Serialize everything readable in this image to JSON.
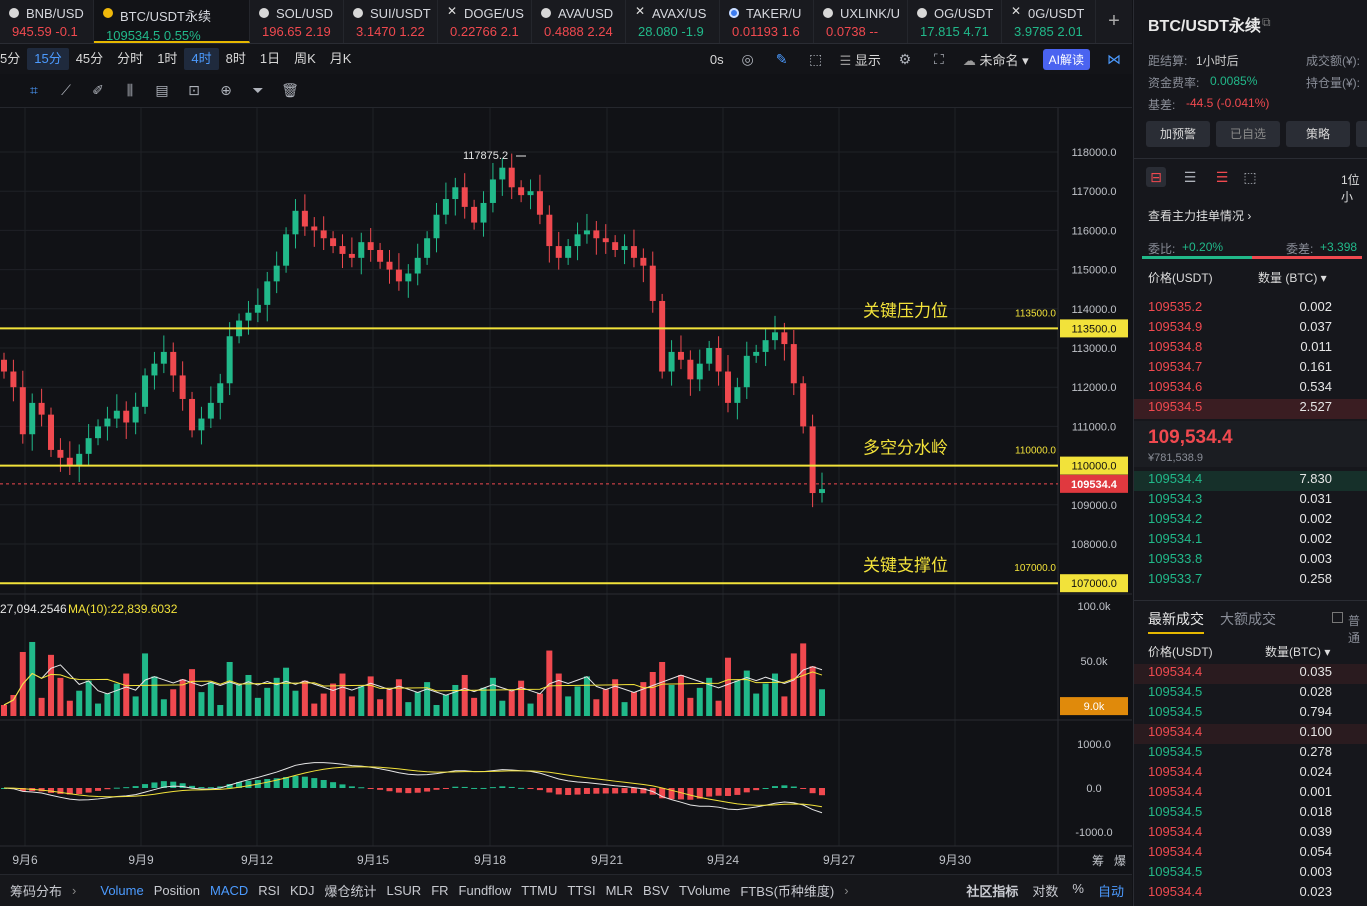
{
  "tabs": [
    {
      "symbol": "BNB/USD",
      "price": "945.59",
      "change": "-0.1",
      "dir": "red",
      "icon": "circle"
    },
    {
      "symbol": "BTC/USDT永续",
      "price": "109534.5",
      "change": "0.55%",
      "dir": "green",
      "icon": "bnb"
    },
    {
      "symbol": "SOL/USD",
      "price": "196.65",
      "change": "2.19",
      "dir": "red",
      "icon": "circle"
    },
    {
      "symbol": "SUI/USDT",
      "price": "3.1470",
      "change": "1.22",
      "dir": "red",
      "icon": "circle"
    },
    {
      "symbol": "DOGE/US",
      "price": "0.22766",
      "change": "2.1",
      "dir": "red",
      "icon": "x"
    },
    {
      "symbol": "AVA/USD",
      "price": "0.4888",
      "change": "2.24",
      "dir": "red",
      "icon": "circle"
    },
    {
      "symbol": "AVAX/US",
      "price": "28.080",
      "change": "-1.9",
      "dir": "green",
      "icon": "x"
    },
    {
      "symbol": "TAKER/U",
      "price": "0.01193",
      "change": "1.6",
      "dir": "red",
      "icon": "blue"
    },
    {
      "symbol": "UXLINK/U",
      "price": "0.0738",
      "change": "--",
      "dir": "red",
      "icon": "circle"
    },
    {
      "symbol": "OG/USDT",
      "price": "17.815",
      "change": "4.71",
      "dir": "green",
      "icon": "circle"
    },
    {
      "symbol": "0G/USDT",
      "price": "3.9785",
      "change": "2.01",
      "dir": "green",
      "icon": "x"
    }
  ],
  "plus_label": "+",
  "timeframes": [
    "5分",
    "15分",
    "45分",
    "分时",
    "1时",
    "4时",
    "8时",
    "1日",
    "周K",
    "月K"
  ],
  "toolbar_right": {
    "countdown": "0s",
    "display": "显示",
    "layout_name": "未命名",
    "ai_label": "AI解读"
  },
  "chart_data": {
    "type": "candlestick",
    "x_ticks": [
      "9月6",
      "9月9",
      "9月12",
      "9月15",
      "9月18",
      "9月21",
      "9月24",
      "9月27",
      "9月30"
    ],
    "y_ticks": [
      "118000.0",
      "117000.0",
      "116000.0",
      "115000.0",
      "114000.0",
      "113000.0",
      "112000.0",
      "111000.0",
      "110000.0",
      "109000.0",
      "108000.0",
      "107000.0"
    ],
    "ylim": [
      106600,
      118900
    ],
    "high_marker": "117875.2",
    "last_price": "109534.4",
    "hlines": [
      {
        "value": 113500,
        "label": "113500.0",
        "note": "关键压力位"
      },
      {
        "value": 110000,
        "label": "110000.0",
        "note": "多空分水岭"
      },
      {
        "value": 107000,
        "label": "107000.0",
        "note": "关键支撑位"
      }
    ],
    "closes": [
      112400,
      112000,
      110800,
      111600,
      111300,
      110400,
      110200,
      110000,
      110300,
      110700,
      111000,
      111200,
      111400,
      111100,
      111500,
      112300,
      112600,
      112900,
      112300,
      111700,
      110900,
      111200,
      111600,
      112100,
      113300,
      113700,
      113900,
      114100,
      114700,
      115100,
      115900,
      116500,
      116100,
      116000,
      115800,
      115600,
      115400,
      115300,
      115700,
      115500,
      115200,
      115000,
      114700,
      114900,
      115300,
      115800,
      116400,
      116800,
      117100,
      116600,
      116200,
      116700,
      117300,
      117600,
      117100,
      116900,
      117000,
      116400,
      115600,
      115300,
      115600,
      115900,
      116000,
      115800,
      115700,
      115500,
      115600,
      115300,
      115100,
      114200,
      112400,
      112900,
      112700,
      112200,
      112600,
      113000,
      112400,
      111600,
      112000,
      112800,
      112900,
      113200,
      113400,
      113100,
      112100,
      111000,
      109300,
      109400
    ],
    "vol_ylim": [
      0,
      100000
    ],
    "vol_ticks": [
      "100.0k",
      "50.0k"
    ],
    "vol_last": "9.0k",
    "vol_legend": "27,094.2546",
    "vol_ma_label": "MA(10):22,839.6032",
    "macd_ticks": [
      "1000.0",
      "0.0",
      "-1000.0"
    ]
  },
  "bottom_tabs": [
    "筹码分布",
    "Volume",
    "Position",
    "MACD",
    "RSI",
    "KDJ",
    "爆仓统计",
    "LSUR",
    "FR",
    "Fundflow",
    "TTMU",
    "TTSI",
    "MLR",
    "BSV",
    "TVolume",
    "FTBS(币种维度)"
  ],
  "bottom_right": [
    "社区指标",
    "对数",
    "%",
    "自动"
  ],
  "bottom_corner": [
    "筹",
    "爆"
  ],
  "side": {
    "title": "BTC/USDT永续",
    "settle_label": "距结算:",
    "settle_value": "1小时后",
    "funding_label": "资金费率:",
    "funding_value": "0.0085%",
    "basis_label": "基差:",
    "basis_value": "-44.5 (-0.041%)",
    "turnover_label": "成交额(¥):",
    "oi_label": "持仓量(¥):",
    "buttons": [
      "加预警",
      "已自选",
      "策略"
    ],
    "depth_label": "1位小",
    "view_main": "查看主力挂单情况",
    "ratio_label": "委比:",
    "ratio_value": "+0.20%",
    "diff_label": "委差:",
    "diff_value": "+3.398",
    "ob_header": [
      "价格(USDT)",
      "数量 (BTC)"
    ],
    "asks": [
      [
        "109535.2",
        "0.002"
      ],
      [
        "109534.9",
        "0.037"
      ],
      [
        "109534.8",
        "0.011"
      ],
      [
        "109534.7",
        "0.161"
      ],
      [
        "109534.6",
        "0.534"
      ],
      [
        "109534.5",
        "2.527"
      ]
    ],
    "mid_price": "109,534.4",
    "mid_cny": "¥781,538.9",
    "bids": [
      [
        "109534.4",
        "7.830"
      ],
      [
        "109534.3",
        "0.031"
      ],
      [
        "109534.2",
        "0.002"
      ],
      [
        "109534.1",
        "0.002"
      ],
      [
        "109533.8",
        "0.003"
      ],
      [
        "109533.7",
        "0.258"
      ]
    ],
    "trades_tab": "最新成交",
    "big_tab": "大额成交",
    "normal_label": "普通",
    "trades_header": [
      "价格(USDT)",
      "数量(BTC)"
    ],
    "trades": [
      [
        "109534.4",
        "0.035",
        "red"
      ],
      [
        "109534.5",
        "0.028",
        "green"
      ],
      [
        "109534.5",
        "0.794",
        "green"
      ],
      [
        "109534.4",
        "0.100",
        "red"
      ],
      [
        "109534.5",
        "0.278",
        "green"
      ],
      [
        "109534.4",
        "0.024",
        "red"
      ],
      [
        "109534.4",
        "0.001",
        "red"
      ],
      [
        "109534.5",
        "0.018",
        "green"
      ],
      [
        "109534.4",
        "0.039",
        "red"
      ],
      [
        "109534.4",
        "0.054",
        "red"
      ],
      [
        "109534.5",
        "0.003",
        "green"
      ],
      [
        "109534.4",
        "0.023",
        "red"
      ]
    ]
  }
}
